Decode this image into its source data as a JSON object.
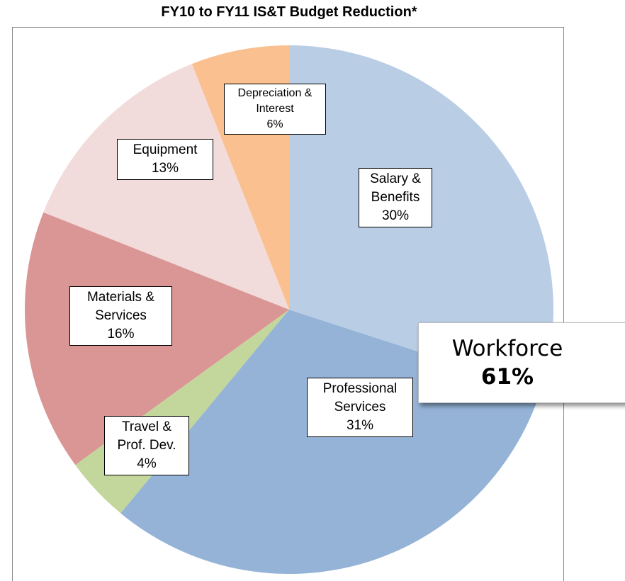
{
  "chart_data": {
    "type": "pie",
    "title": "FY10 to FY11 IS&T Budget Reduction*",
    "categories": [
      "Salary & Benefits",
      "Professional Services",
      "Travel & Prof. Dev.",
      "Materials & Services",
      "Equipment",
      "Depreciation & Interest"
    ],
    "values": [
      30,
      31,
      4,
      16,
      13,
      6
    ],
    "value_labels": [
      "30%",
      "31%",
      "4%",
      "16%",
      "13%",
      "6%"
    ],
    "colors": [
      "#b9cde5",
      "#95b3d7",
      "#c3d69b",
      "#d99694",
      "#f2dcdb",
      "#fac090"
    ],
    "annotation": [
      "Workforce",
      "61%"
    ]
  }
}
